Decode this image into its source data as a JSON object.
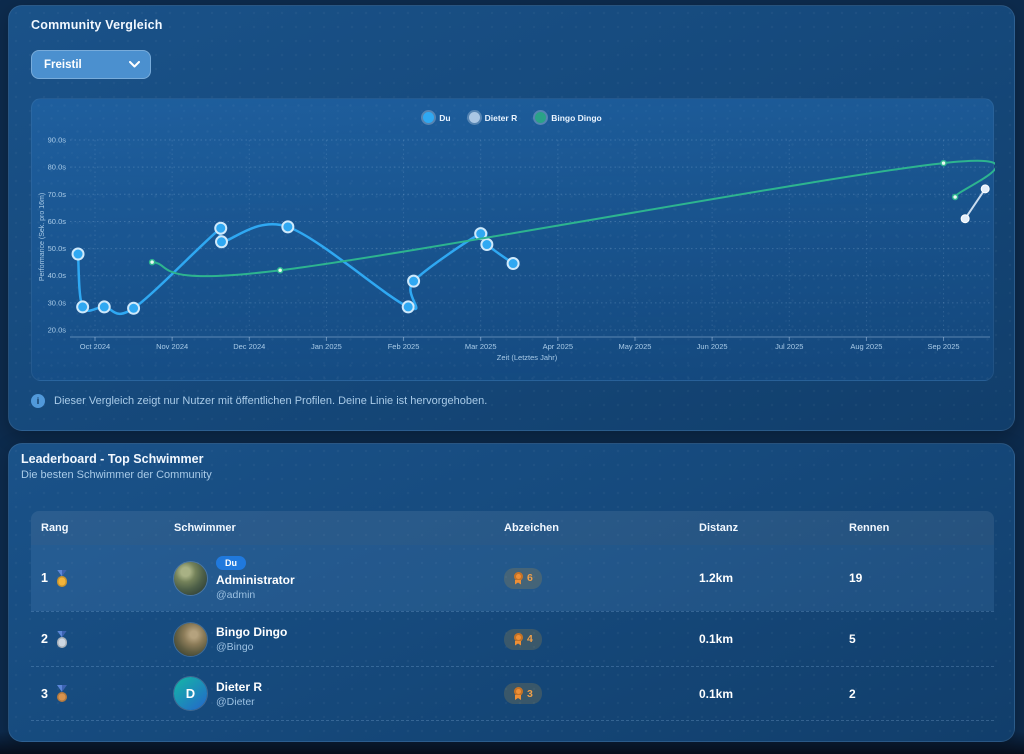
{
  "comparison": {
    "title": "Community Vergleich",
    "style_select": {
      "value": "Freistil"
    },
    "note": "Dieser Vergleich zeigt nur Nutzer mit öffentlichen Profilen. Deine Linie ist hervorgehoben.",
    "info_icon_glyph": "i"
  },
  "chart_data": {
    "type": "line",
    "xlabel": "Zeit (Letztes Jahr)",
    "ylabel": "Performance (Sek. pro 16m)",
    "x_ticks": [
      "Oct 2024",
      "Nov 2024",
      "Dec 2024",
      "Jan 2025",
      "Feb 2025",
      "Mar 2025",
      "Apr 2025",
      "May 2025",
      "Jun 2025",
      "Jul 2025",
      "Aug 2025",
      "Sep 2025"
    ],
    "y_ticks": [
      20,
      30,
      40,
      50,
      60,
      70,
      80,
      90
    ],
    "y_tick_suffix": ".0s",
    "ylim": [
      15,
      95
    ],
    "x_unit": "months_after_first_tick",
    "grid": "dotted",
    "legend_position": "top-center",
    "series": [
      {
        "name": "Du",
        "line_color": "#2fa8f2",
        "legend_color": "#2fa8f2",
        "line_width": 2.5,
        "point_radius": 5.5,
        "point_fill": "#2fa8f2",
        "point_stroke": "#cfe9fb",
        "point_stroke_width": 2,
        "points": [
          {
            "x": -0.22,
            "seconds": 48
          },
          {
            "x": -0.16,
            "seconds": 28.5
          },
          {
            "x": 0.12,
            "seconds": 28.5
          },
          {
            "x": 0.5,
            "seconds": 28
          },
          {
            "x": 1.63,
            "seconds": 57.5
          },
          {
            "x": 1.64,
            "seconds": 52.5
          },
          {
            "x": 2.5,
            "seconds": 58
          },
          {
            "x": 4.06,
            "seconds": 28.5
          },
          {
            "x": 4.13,
            "seconds": 38
          },
          {
            "x": 5.0,
            "seconds": 55.5
          },
          {
            "x": 5.08,
            "seconds": 51.5
          },
          {
            "x": 5.42,
            "seconds": 44.5
          }
        ]
      },
      {
        "name": "Dieter R",
        "line_color": "#c9dcef",
        "legend_color": "#a9c6e4",
        "line_width": 2,
        "point_radius": 4,
        "point_fill": "#e3eef9",
        "point_stroke": "#ffffff",
        "point_stroke_width": 1,
        "points": [
          {
            "x": 11.28,
            "seconds": 61
          },
          {
            "x": 11.54,
            "seconds": 72
          }
        ]
      },
      {
        "name": "Bingo Dingo",
        "line_color": "#2db48f",
        "legend_color": "#2aa287",
        "line_width": 2,
        "point_radius": 2.5,
        "point_fill": "#eafaf2",
        "point_stroke": "#2db48f",
        "point_stroke_width": 1.5,
        "points": [
          {
            "x": 0.74,
            "seconds": 45
          },
          {
            "x": 2.4,
            "seconds": 42
          },
          {
            "x": 11.0,
            "seconds": 81.5
          },
          {
            "x": 11.15,
            "seconds": 69
          }
        ]
      }
    ]
  },
  "leaderboard": {
    "title": "Leaderboard - Top Schwimmer",
    "subtitle": "Die besten Schwimmer der Community",
    "columns": [
      "Rang",
      "Schwimmer",
      "Abzeichen",
      "Distanz",
      "Rennen"
    ],
    "rows": [
      {
        "rank": "1",
        "medal": "gold",
        "medal_color": "#f2b43a",
        "tag": "Du",
        "name": "Administrator",
        "handle": "@admin",
        "avatar": {
          "style": "photo-a"
        },
        "badges": "6",
        "distance": "1.2km",
        "races": "19",
        "highlight": true
      },
      {
        "rank": "2",
        "medal": "silver",
        "medal_color": "#cdd7e2",
        "name": "Bingo Dingo",
        "handle": "@Bingo",
        "avatar": {
          "style": "photo-b"
        },
        "badges": "4",
        "distance": "0.1km",
        "races": "5",
        "highlight": false
      },
      {
        "rank": "3",
        "medal": "bronze",
        "medal_color": "#d8934e",
        "name": "Dieter R",
        "handle": "@Dieter",
        "avatar": {
          "style": "initial-teal",
          "initial": "D"
        },
        "badges": "3",
        "distance": "0.1km",
        "races": "2",
        "highlight": false
      }
    ]
  }
}
